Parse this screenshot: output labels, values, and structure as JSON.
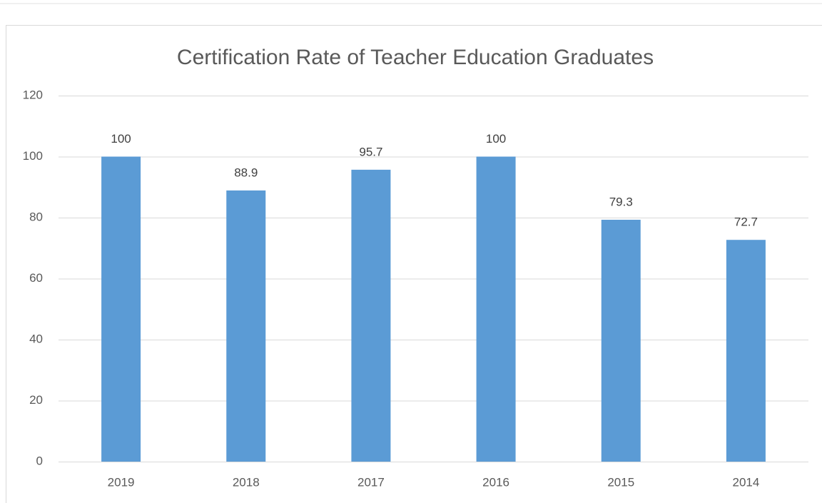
{
  "chart_data": {
    "type": "bar",
    "title": "Certification Rate of Teacher Education Graduates",
    "categories": [
      "2019",
      "2018",
      "2017",
      "2016",
      "2015",
      "2014"
    ],
    "values": [
      100,
      88.9,
      95.7,
      100,
      79.3,
      72.7
    ],
    "color": "#5b9bd5",
    "ylim": [
      0,
      120
    ],
    "yticks": [
      0,
      20,
      40,
      60,
      80,
      100,
      120
    ],
    "grid": true
  }
}
